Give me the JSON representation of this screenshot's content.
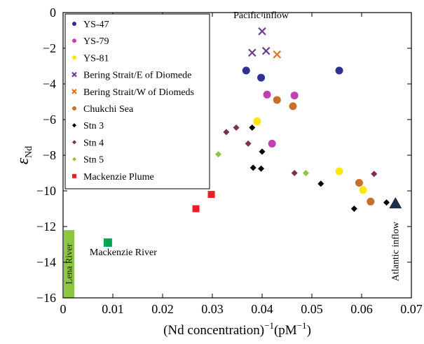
{
  "chart_data": {
    "type": "scatter",
    "xlabel_main": "(Nd concentration)",
    "xlabel_sup": "−1",
    "xlabel_unit": "(pM",
    "xlabel_unit_sup": "−1",
    "xlabel_close": ")",
    "ylabel_main": "ε",
    "ylabel_sub": "Nd",
    "xlim": [
      0,
      0.07
    ],
    "ylim": [
      -16,
      0
    ],
    "xticks": [
      "0",
      "0.01",
      "0.02",
      "0.03",
      "0.04",
      "0.05",
      "0.06",
      "0.07"
    ],
    "yticks": [
      "0",
      "−2",
      "−4",
      "−6",
      "−8",
      "−10",
      "−12",
      "−14",
      "−16"
    ],
    "grid": false,
    "legend_position": "top-left",
    "series": [
      {
        "name": "YS-47",
        "marker": "circle",
        "color": "#2e3192",
        "points": [
          [
            0.0368,
            -3.25
          ],
          [
            0.0398,
            -3.65
          ],
          [
            0.0555,
            -3.25
          ]
        ]
      },
      {
        "name": "YS-79",
        "marker": "circle",
        "color": "#c23fb0",
        "points": [
          [
            0.041,
            -4.6
          ],
          [
            0.0465,
            -4.65
          ],
          [
            0.042,
            -7.35
          ]
        ]
      },
      {
        "name": "YS-81",
        "marker": "circle",
        "color": "#ffe600",
        "points": [
          [
            0.039,
            -6.1
          ],
          [
            0.0555,
            -8.9
          ],
          [
            0.0603,
            -9.95
          ]
        ]
      },
      {
        "name": "Bering Strait/E of Diomede",
        "marker": "x",
        "color": "#6a3d8f",
        "points": [
          [
            0.04,
            -1.05
          ],
          [
            0.038,
            -2.25
          ],
          [
            0.0408,
            -2.15
          ]
        ]
      },
      {
        "name": "Bering Strait/W of Diomeds",
        "marker": "x",
        "color": "#e8731f",
        "points": [
          [
            0.043,
            -2.35
          ]
        ]
      },
      {
        "name": "Chukchi Sea",
        "marker": "circle",
        "color": "#c8702a",
        "points": [
          [
            0.043,
            -4.9
          ],
          [
            0.0462,
            -5.25
          ],
          [
            0.0595,
            -9.55
          ],
          [
            0.0618,
            -10.6
          ]
        ]
      },
      {
        "name": "Stn 3",
        "marker": "diamond",
        "color": "#000000",
        "points": [
          [
            0.038,
            -6.45
          ],
          [
            0.04,
            -7.8
          ],
          [
            0.0382,
            -8.7
          ],
          [
            0.0398,
            -8.75
          ],
          [
            0.0518,
            -9.6
          ],
          [
            0.0585,
            -11.0
          ],
          [
            0.065,
            -10.65
          ]
        ]
      },
      {
        "name": "Stn 4",
        "marker": "diamond",
        "color": "#7a2f56",
        "points": [
          [
            0.0328,
            -6.7
          ],
          [
            0.0348,
            -6.45
          ],
          [
            0.0372,
            -7.35
          ],
          [
            0.0465,
            -9.0
          ],
          [
            0.0625,
            -9.05
          ]
        ]
      },
      {
        "name": "Stn 5",
        "marker": "diamond",
        "color": "#8dc63f",
        "points": [
          [
            0.0312,
            -7.95
          ],
          [
            0.0488,
            -9.0
          ]
        ]
      },
      {
        "name": "Mackenzie Plume",
        "marker": "square",
        "color": "#ed1c24",
        "points": [
          [
            0.0267,
            -11.0
          ],
          [
            0.0298,
            -10.2
          ]
        ]
      }
    ],
    "extra_points": [
      {
        "name": "Mackenzie River",
        "marker": "square",
        "color": "#00a651",
        "point": [
          0.009,
          -12.9
        ]
      },
      {
        "name": "Atlantic inflow",
        "marker": "triangle",
        "color": "#1b3047",
        "point": [
          0.0668,
          -10.7
        ]
      }
    ],
    "annotations": {
      "pacific_inflow": "Pacific inflow",
      "mackenzie_river": "Mackenzie River",
      "atlantic_inflow": "Atlantic inflow",
      "lena_river": "Lena River"
    },
    "lena_river_band": {
      "x": [
        0,
        0.002
      ],
      "y": [
        -16,
        -12.2
      ],
      "color": "#8dc63f"
    }
  }
}
